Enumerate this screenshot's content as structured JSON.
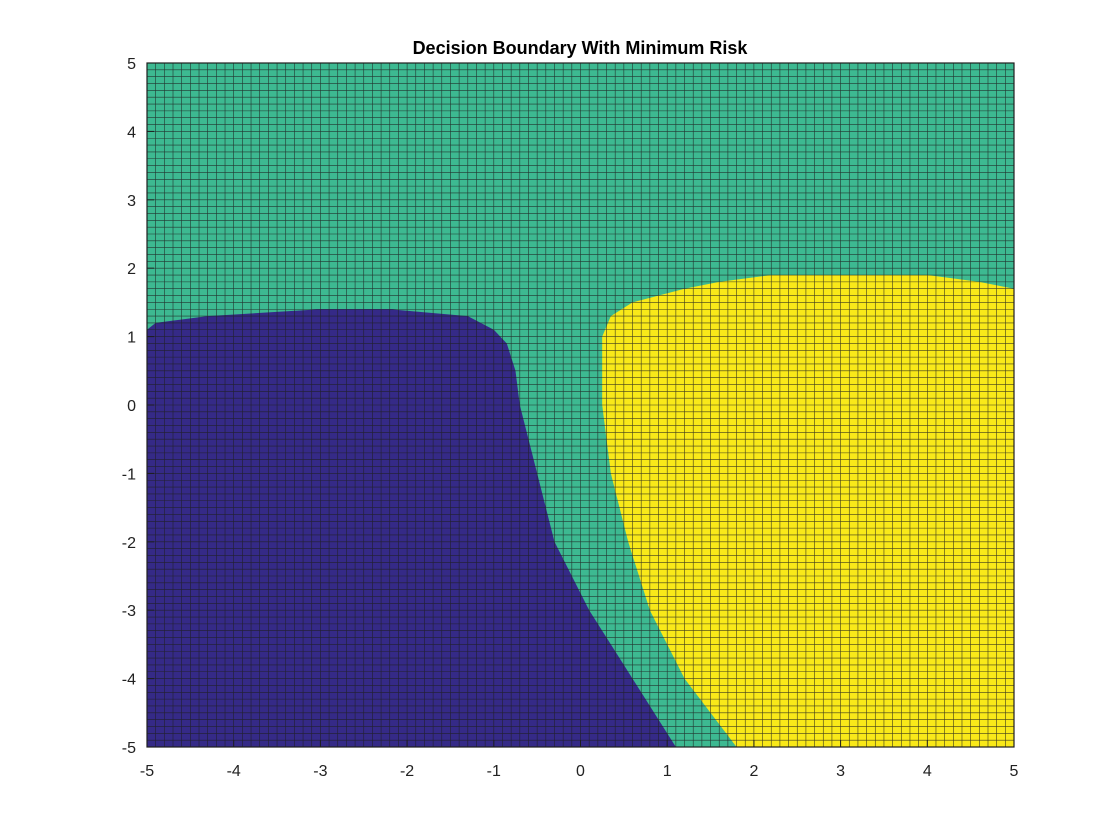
{
  "chart_data": {
    "type": "heatmap",
    "title": "Decision Boundary With Minimum Risk",
    "xlabel": "",
    "ylabel": "",
    "xlim": [
      -5,
      5
    ],
    "ylim": [
      -5,
      5
    ],
    "grid": true,
    "grid_step": 0.1,
    "xticks": [
      -5,
      -4,
      -3,
      -2,
      -1,
      0,
      1,
      2,
      3,
      4,
      5
    ],
    "yticks": [
      -5,
      -4,
      -3,
      -2,
      -1,
      0,
      1,
      2,
      3,
      4,
      5
    ],
    "class_colors": {
      "class_1": "#352a87",
      "class_2": "#3db991",
      "class_3": "#f9e919"
    },
    "cell_line_color": "#1e1e1e",
    "boundaries": {
      "class_1_2": [
        {
          "y": -5.0,
          "x": 1.1
        },
        {
          "y": -4.0,
          "x": 0.6
        },
        {
          "y": -3.0,
          "x": 0.1
        },
        {
          "y": -2.0,
          "x": -0.3
        },
        {
          "y": -1.0,
          "x": -0.5
        },
        {
          "y": 0.0,
          "x": -0.7
        },
        {
          "y": 0.5,
          "x": -0.75
        },
        {
          "y": 0.9,
          "x": -0.85
        },
        {
          "y": 1.1,
          "x": -1.0
        },
        {
          "y": 1.3,
          "x": -1.3
        },
        {
          "y": 1.4,
          "x": -2.2
        },
        {
          "y": 1.4,
          "x": -3.0
        },
        {
          "y": 1.3,
          "x": -4.3
        },
        {
          "y": 1.2,
          "x": -4.9
        },
        {
          "y": 1.1,
          "x": -5.0
        }
      ],
      "class_2_3": [
        {
          "y": -5.0,
          "x": 1.8
        },
        {
          "y": -4.0,
          "x": 1.2
        },
        {
          "y": -3.0,
          "x": 0.8
        },
        {
          "y": -2.0,
          "x": 0.55
        },
        {
          "y": -1.0,
          "x": 0.35
        },
        {
          "y": 0.0,
          "x": 0.25
        },
        {
          "y": 1.0,
          "x": 0.25
        },
        {
          "y": 1.3,
          "x": 0.35
        },
        {
          "y": 1.5,
          "x": 0.6
        },
        {
          "y": 1.7,
          "x": 1.2
        },
        {
          "y": 1.8,
          "x": 1.6
        },
        {
          "y": 1.9,
          "x": 2.2
        },
        {
          "y": 1.9,
          "x": 4.0
        },
        {
          "y": 1.8,
          "x": 4.6
        },
        {
          "y": 1.7,
          "x": 5.0
        }
      ]
    }
  }
}
